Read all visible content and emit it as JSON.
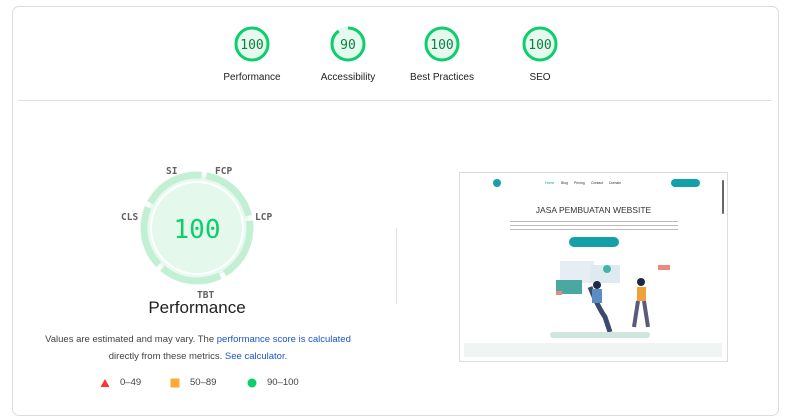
{
  "scores": [
    {
      "label": "Performance",
      "value": 100
    },
    {
      "label": "Accessibility",
      "value": 90
    },
    {
      "label": "Best Practices",
      "value": 100
    },
    {
      "label": "SEO",
      "value": 100
    }
  ],
  "main_gauge": {
    "value": "100",
    "title": "Performance",
    "metrics": [
      "SI",
      "FCP",
      "LCP",
      "TBT",
      "CLS"
    ]
  },
  "note": {
    "text1": "Values are estimated and may vary. The ",
    "link1": "performance score is calculated",
    "text2": "directly from these metrics. ",
    "link2": "See calculator."
  },
  "legend": [
    {
      "icon": "triangle-red",
      "label": "0–49",
      "color": "#ff3333"
    },
    {
      "icon": "square-orange",
      "label": "50–89",
      "color": "#ffaa33"
    },
    {
      "icon": "circle-green",
      "label": "90–100",
      "color": "#0cce6b"
    }
  ],
  "screenshot": {
    "nav": [
      "Home",
      "Blog",
      "Pricing",
      "Contact",
      "Domain"
    ],
    "headline": "JASA PEMBUATAN WEBSITE",
    "accent": "#14a0a8"
  },
  "colors": {
    "pass": "#0cce6b",
    "pass_text": "#0b8043",
    "pass_fill": "#e6f9ee"
  }
}
